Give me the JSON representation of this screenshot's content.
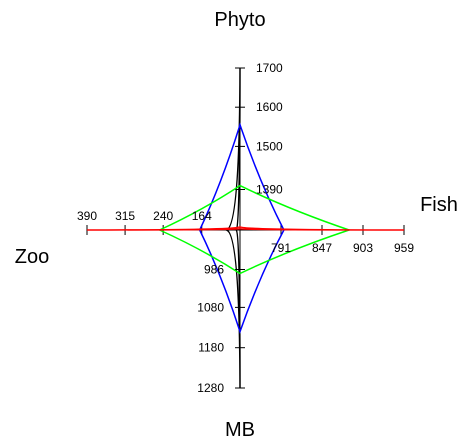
{
  "chart_data": {
    "type": "radar",
    "title": "",
    "axes": [
      {
        "name": "Phyto",
        "direction": "up",
        "ticks": [
          {
            "value": 1390,
            "label": "1390"
          },
          {
            "value": 1500,
            "label": "1500"
          },
          {
            "value": 1600,
            "label": "1600"
          },
          {
            "value": 1700,
            "label": "1700"
          }
        ]
      },
      {
        "name": "Fish",
        "direction": "right",
        "ticks": [
          {
            "value": 791,
            "label": "791"
          },
          {
            "value": 847,
            "label": "847"
          },
          {
            "value": 903,
            "label": "903"
          },
          {
            "value": 959,
            "label": "959"
          }
        ]
      },
      {
        "name": "MB",
        "direction": "down",
        "ticks": [
          {
            "value": 986,
            "label": "986"
          },
          {
            "value": 1080,
            "label": "1080"
          },
          {
            "value": 1180,
            "label": "1180"
          },
          {
            "value": 1280,
            "label": "1280"
          }
        ]
      },
      {
        "name": "Zoo",
        "direction": "left",
        "ticks": [
          {
            "value": 164,
            "label": "164"
          },
          {
            "value": 240,
            "label": "240"
          },
          {
            "value": 315,
            "label": "315"
          },
          {
            "value": 390,
            "label": "390"
          }
        ]
      }
    ],
    "series": [
      {
        "color": "#000000",
        "values": {
          "Phyto": 1700,
          "Fish": 730,
          "MB": 1280,
          "Zoo": 115
        }
      },
      {
        "color": "#0000ff",
        "values": {
          "Phyto": 1555,
          "Fish": 795,
          "MB": 1140,
          "Zoo": 168
        }
      },
      {
        "color": "#00ff00",
        "values": {
          "Phyto": 1400,
          "Fish": 884,
          "MB": 996,
          "Zoo": 247
        }
      },
      {
        "color": "#ff0000",
        "values": {
          "Phyto": 1290,
          "Fish": 959,
          "MB": 880,
          "Zoo": 390
        }
      }
    ],
    "grid": false,
    "legend": "none"
  }
}
